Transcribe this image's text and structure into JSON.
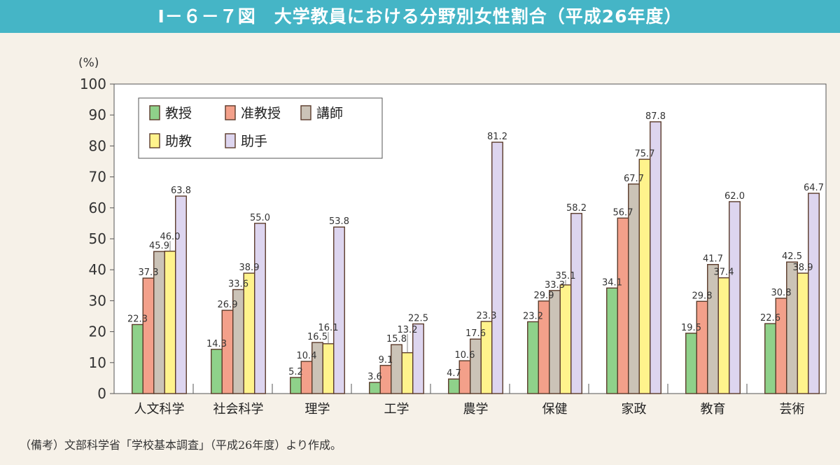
{
  "header": {
    "title": "Ⅰ－６－７図　大学教員における分野別女性割合（平成26年度）"
  },
  "footnote": "（備考）文部科学省「学校基本調査」（平成26年度）より作成。",
  "chart_data": {
    "type": "bar",
    "title": "Ⅰ－６－７図　大学教員における分野別女性割合（平成26年度）",
    "ylabel": "(%)",
    "ylim": [
      0,
      100
    ],
    "yticks": [
      0,
      10,
      20,
      30,
      40,
      50,
      60,
      70,
      80,
      90,
      100
    ],
    "legend_position": "top-left",
    "categories": [
      "人文科学",
      "社会科学",
      "理学",
      "工学",
      "農学",
      "保健",
      "家政",
      "教育",
      "芸術"
    ],
    "series": [
      {
        "name": "教授",
        "color": "#8fd18a",
        "values": [
          22.3,
          14.3,
          5.2,
          3.6,
          4.7,
          23.2,
          34.1,
          19.5,
          22.6
        ]
      },
      {
        "name": "准教授",
        "color": "#f3a08a",
        "values": [
          37.3,
          26.9,
          10.4,
          9.1,
          10.6,
          29.9,
          56.7,
          29.8,
          30.8
        ]
      },
      {
        "name": "講師",
        "color": "#cbc3b7",
        "values": [
          45.9,
          33.6,
          16.5,
          15.8,
          17.6,
          33.3,
          67.7,
          41.7,
          42.5
        ]
      },
      {
        "name": "助教",
        "color": "#fff38c",
        "values": [
          46.0,
          38.9,
          16.1,
          13.2,
          23.3,
          35.1,
          75.7,
          37.4,
          38.9
        ]
      },
      {
        "name": "助手",
        "color": "#ddd5ef",
        "values": [
          63.8,
          55.0,
          53.8,
          22.5,
          81.2,
          58.2,
          87.8,
          62.0,
          64.7
        ]
      }
    ]
  }
}
